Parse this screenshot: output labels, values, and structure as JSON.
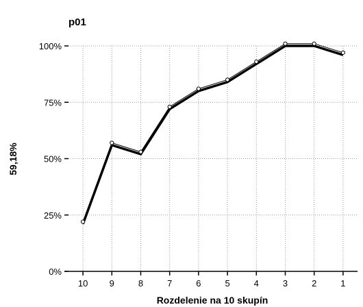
{
  "chart_data": {
    "type": "line",
    "title": "p01",
    "xlabel": "Rozdelenie na 10 skupín",
    "ylabel": "59,18%",
    "categories": [
      "10",
      "9",
      "8",
      "7",
      "6",
      "5",
      "4",
      "3",
      "2",
      "1"
    ],
    "y_ticks": [
      {
        "value": 0,
        "label": "0%"
      },
      {
        "value": 25,
        "label": "25%"
      },
      {
        "value": 50,
        "label": "50%"
      },
      {
        "value": 75,
        "label": "75%"
      },
      {
        "value": 100,
        "label": "100%"
      }
    ],
    "ylim": [
      0,
      100
    ],
    "grid": true,
    "series": [
      {
        "values": [
          21,
          56,
          52,
          72,
          80,
          84,
          92,
          100,
          100,
          96
        ],
        "color": "#000000"
      },
      {
        "values": [
          22,
          57,
          53,
          73,
          81,
          85,
          93,
          101,
          101,
          97
        ],
        "color": "#000000"
      }
    ]
  }
}
